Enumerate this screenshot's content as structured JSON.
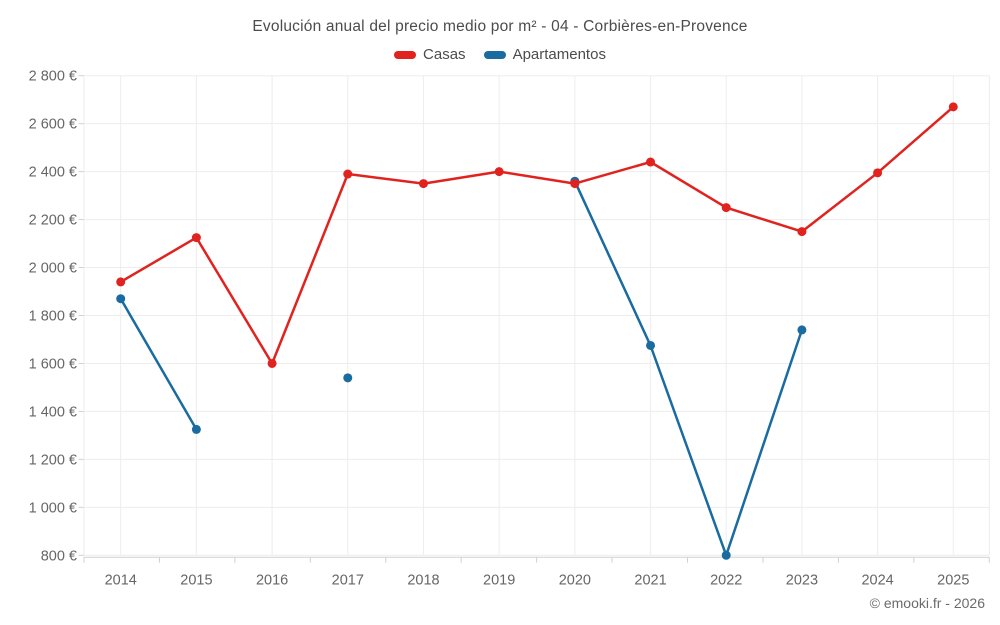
{
  "chart": {
    "title": "Evolución anual del precio medio por m² - 04 - Corbières-en-Provence",
    "legend": [
      {
        "id": "casas",
        "label": "Casas",
        "color": "#e0231e"
      },
      {
        "id": "apartamentos",
        "label": "Apartamentos",
        "color": "#1a6b9f"
      }
    ]
  },
  "footer": {
    "copyright": "© emooki.fr - 2026"
  },
  "chart_data": {
    "type": "line",
    "title": "Evolución anual del precio medio por m² - 04 - Corbières-en-Provence",
    "categories": [
      "2014",
      "2015",
      "2016",
      "2017",
      "2018",
      "2019",
      "2020",
      "2021",
      "2022",
      "2023",
      "2024",
      "2025"
    ],
    "series": [
      {
        "name": "Casas",
        "color": "#e0231e",
        "values": [
          1940,
          2125,
          1600,
          2390,
          2350,
          2400,
          2350,
          2440,
          2250,
          2150,
          2395,
          2670
        ]
      },
      {
        "name": "Apartamentos",
        "color": "#1a6b9f",
        "values": [
          1870,
          1325,
          null,
          1540,
          null,
          null,
          2360,
          1675,
          800,
          1740,
          null,
          null
        ]
      }
    ],
    "xlabel": "",
    "ylabel": "",
    "y_unit": "€",
    "ylim": [
      800,
      2800
    ],
    "ytick_step": 200,
    "ytick_labels": [
      "800 €",
      "1 000 €",
      "1 200 €",
      "1 400 €",
      "1 600 €",
      "1 800 €",
      "2 000 €",
      "2 200 €",
      "2 400 €",
      "2 600 €",
      "2 800 €"
    ],
    "grid": true,
    "legend_position": "top",
    "colors": {
      "gridline": "#ededed",
      "axis": "#d0d0d0",
      "tick_text": "#666666"
    }
  }
}
